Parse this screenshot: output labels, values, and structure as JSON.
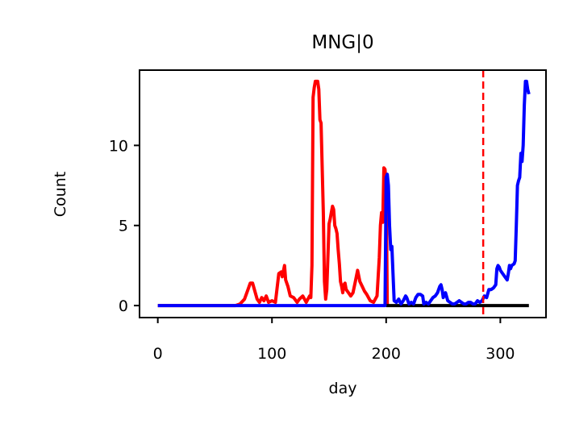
{
  "chart_data": {
    "type": "line",
    "title": "MNG|0",
    "xlabel": "day",
    "ylabel": "Count",
    "xlim": [
      -16,
      340
    ],
    "ylim": [
      -0.75,
      14.7
    ],
    "xticks": [
      0,
      100,
      200,
      300
    ],
    "yticks": [
      0,
      5,
      10
    ],
    "grid": false,
    "legend": "none",
    "vline": {
      "x": 285,
      "color": "#ff0000",
      "style": "dashed"
    },
    "series": [
      {
        "color": "#ff0000",
        "points": [
          [
            0,
            0
          ],
          [
            68,
            0
          ],
          [
            72,
            0.1
          ],
          [
            76,
            0.4
          ],
          [
            79,
            1.0
          ],
          [
            81,
            1.4
          ],
          [
            83,
            1.4
          ],
          [
            85,
            0.9
          ],
          [
            87,
            0.4
          ],
          [
            89,
            0.2
          ],
          [
            91,
            0.5
          ],
          [
            93,
            0.3
          ],
          [
            95,
            0.6
          ],
          [
            97,
            0.2
          ],
          [
            100,
            0.3
          ],
          [
            103,
            0.2
          ],
          [
            106,
            2.0
          ],
          [
            108,
            2.1
          ],
          [
            109,
            1.8
          ],
          [
            111,
            2.5
          ],
          [
            112,
            1.6
          ],
          [
            114,
            1.2
          ],
          [
            116,
            0.6
          ],
          [
            119,
            0.5
          ],
          [
            122,
            0.2
          ],
          [
            124,
            0.4
          ],
          [
            127,
            0.6
          ],
          [
            130,
            0.2
          ],
          [
            133,
            0.6
          ],
          [
            134,
            0.5
          ],
          [
            135,
            2.5
          ],
          [
            136,
            13.0
          ],
          [
            137,
            13.6
          ],
          [
            138,
            14.0
          ],
          [
            140,
            14.0
          ],
          [
            141,
            13.5
          ],
          [
            142,
            11.6
          ],
          [
            143,
            11.4
          ],
          [
            145,
            5.8
          ],
          [
            146,
            1.5
          ],
          [
            147,
            0.4
          ],
          [
            148,
            1.0
          ],
          [
            150,
            5.1
          ],
          [
            151,
            5.4
          ],
          [
            152,
            5.8
          ],
          [
            153,
            6.2
          ],
          [
            154,
            6.0
          ],
          [
            155,
            5.0
          ],
          [
            156,
            4.8
          ],
          [
            157,
            4.5
          ],
          [
            158,
            3.5
          ],
          [
            159,
            2.6
          ],
          [
            160,
            1.5
          ],
          [
            161,
            1.2
          ],
          [
            162,
            0.8
          ],
          [
            163,
            1.3
          ],
          [
            164,
            1.4
          ],
          [
            165,
            1.0
          ],
          [
            167,
            0.8
          ],
          [
            169,
            0.6
          ],
          [
            171,
            0.8
          ],
          [
            173,
            1.5
          ],
          [
            175,
            2.2
          ],
          [
            177,
            1.5
          ],
          [
            179,
            1.2
          ],
          [
            181,
            0.9
          ],
          [
            183,
            0.7
          ],
          [
            186,
            0.3
          ],
          [
            189,
            0.2
          ],
          [
            192,
            0.6
          ],
          [
            194,
            3.0
          ],
          [
            195,
            5.0
          ],
          [
            196,
            5.8
          ],
          [
            197,
            5.2
          ],
          [
            198,
            8.6
          ],
          [
            199,
            8.5
          ],
          [
            200,
            7.5
          ],
          [
            201,
            0
          ]
        ]
      },
      {
        "color": "#000000",
        "points": [
          [
            200,
            0
          ],
          [
            325,
            0
          ]
        ]
      },
      {
        "color": "#0000ff",
        "points": [
          [
            0,
            0
          ],
          [
            199,
            0
          ],
          [
            200,
            8.0
          ],
          [
            201,
            8.2
          ],
          [
            202,
            7.5
          ],
          [
            203,
            5.0
          ],
          [
            204,
            3.5
          ],
          [
            205,
            3.7
          ],
          [
            206,
            2.0
          ],
          [
            207,
            0.3
          ],
          [
            209,
            0.2
          ],
          [
            211,
            0.4
          ],
          [
            213,
            0.1
          ],
          [
            215,
            0.3
          ],
          [
            217,
            0.6
          ],
          [
            218,
            0.5
          ],
          [
            220,
            0.1
          ],
          [
            222,
            0.2
          ],
          [
            224,
            0.1
          ],
          [
            226,
            0.5
          ],
          [
            228,
            0.7
          ],
          [
            230,
            0.7
          ],
          [
            232,
            0.6
          ],
          [
            233,
            0.1
          ],
          [
            235,
            0.2
          ],
          [
            237,
            0.1
          ],
          [
            239,
            0.3
          ],
          [
            241,
            0.5
          ],
          [
            243,
            0.6
          ],
          [
            245,
            0.8
          ],
          [
            247,
            1.2
          ],
          [
            248,
            1.3
          ],
          [
            249,
            1.0
          ],
          [
            250,
            0.5
          ],
          [
            252,
            0.8
          ],
          [
            254,
            0.3
          ],
          [
            256,
            0.2
          ],
          [
            258,
            0.1
          ],
          [
            260,
            0.1
          ],
          [
            262,
            0.2
          ],
          [
            264,
            0.3
          ],
          [
            266,
            0.2
          ],
          [
            268,
            0.1
          ],
          [
            270,
            0.1
          ],
          [
            272,
            0.2
          ],
          [
            274,
            0.2
          ],
          [
            276,
            0.1
          ],
          [
            278,
            0.1
          ],
          [
            280,
            0.3
          ],
          [
            282,
            0.2
          ],
          [
            284,
            0.3
          ],
          [
            286,
            0.6
          ],
          [
            288,
            0.5
          ],
          [
            290,
            1.0
          ],
          [
            292,
            1.0
          ],
          [
            294,
            1.1
          ],
          [
            296,
            1.3
          ],
          [
            297,
            2.3
          ],
          [
            298,
            2.5
          ],
          [
            299,
            2.4
          ],
          [
            300,
            2.2
          ],
          [
            302,
            2.0
          ],
          [
            304,
            1.8
          ],
          [
            306,
            1.6
          ],
          [
            307,
            2.0
          ],
          [
            308,
            2.5
          ],
          [
            309,
            2.3
          ],
          [
            310,
            2.5
          ],
          [
            312,
            2.6
          ],
          [
            313,
            2.8
          ],
          [
            314,
            5.0
          ],
          [
            315,
            7.5
          ],
          [
            316,
            7.8
          ],
          [
            317,
            8.0
          ],
          [
            318,
            9.5
          ],
          [
            319,
            9.0
          ],
          [
            320,
            10.0
          ],
          [
            321,
            12.5
          ],
          [
            322,
            14.0
          ],
          [
            323,
            14.0
          ],
          [
            324,
            13.5
          ],
          [
            325,
            13.2
          ]
        ]
      }
    ]
  }
}
